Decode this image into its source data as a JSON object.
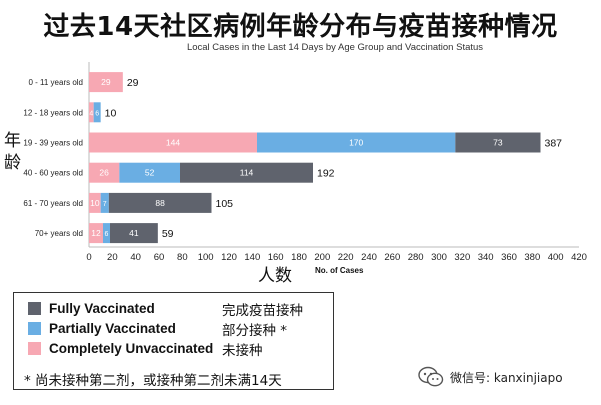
{
  "title": "过去14天社区病例年龄分布与疫苗接种情况",
  "subtitle": "Local Cases in the Last 14 Days by Age Group and Vaccination Status",
  "y_axis_title_cn": "年龄",
  "x_axis_title_cn": "人数",
  "x_axis_title_en": "No. of Cases",
  "colors": {
    "fully": "#5f636d",
    "partially": "#6aaee3",
    "unvaccinated": "#f7a8b3"
  },
  "chart_data": {
    "type": "bar",
    "orientation": "horizontal",
    "stacked": true,
    "title": "Local Cases in the Last 14 Days by Age Group and Vaccination Status",
    "xlabel": "No. of Cases",
    "xlim": [
      0,
      420
    ],
    "xticks": [
      0,
      20,
      40,
      60,
      80,
      100,
      120,
      140,
      160,
      180,
      200,
      220,
      240,
      260,
      280,
      300,
      320,
      340,
      360,
      380,
      400,
      420
    ],
    "categories": [
      "0 - 11 years old",
      "12 - 18 years old",
      "19 - 39 years old",
      "40 - 60 years old",
      "61 - 70 years old",
      "70+ years old"
    ],
    "series": [
      {
        "name": "Completely Unvaccinated",
        "color": "#f7a8b3",
        "values": [
          29,
          4,
          144,
          26,
          10,
          12
        ],
        "labels": [
          "29",
          "4",
          "144",
          "26",
          "10",
          "12"
        ]
      },
      {
        "name": "Partially Vaccinated",
        "color": "#6aaee3",
        "values": [
          0,
          6,
          170,
          52,
          7,
          6
        ],
        "labels": [
          "",
          "6",
          "170",
          "52",
          "7",
          "6"
        ]
      },
      {
        "name": "Fully Vaccinated",
        "color": "#5f636d",
        "values": [
          0,
          0,
          73,
          114,
          88,
          41
        ],
        "labels": [
          "",
          "",
          "73",
          "114",
          "88",
          "41"
        ]
      }
    ],
    "totals": [
      29,
      10,
      387,
      192,
      105,
      59
    ],
    "grid": false
  },
  "legend": {
    "items": [
      {
        "label": "Fully Vaccinated",
        "label_cn": "完成疫苗接种",
        "color": "#5f636d"
      },
      {
        "label": "Partially Vaccinated",
        "label_cn": "部分接种 *",
        "color": "#6aaee3"
      },
      {
        "label": "Completely Unvaccinated",
        "label_cn": "未接种",
        "color": "#f7a8b3"
      }
    ],
    "note": "* 尚未接种第二剂，或接种第二剂未满14天"
  },
  "watermark": {
    "text": "微信号: kanxinjiapo",
    "icon": "wechat-icon"
  }
}
